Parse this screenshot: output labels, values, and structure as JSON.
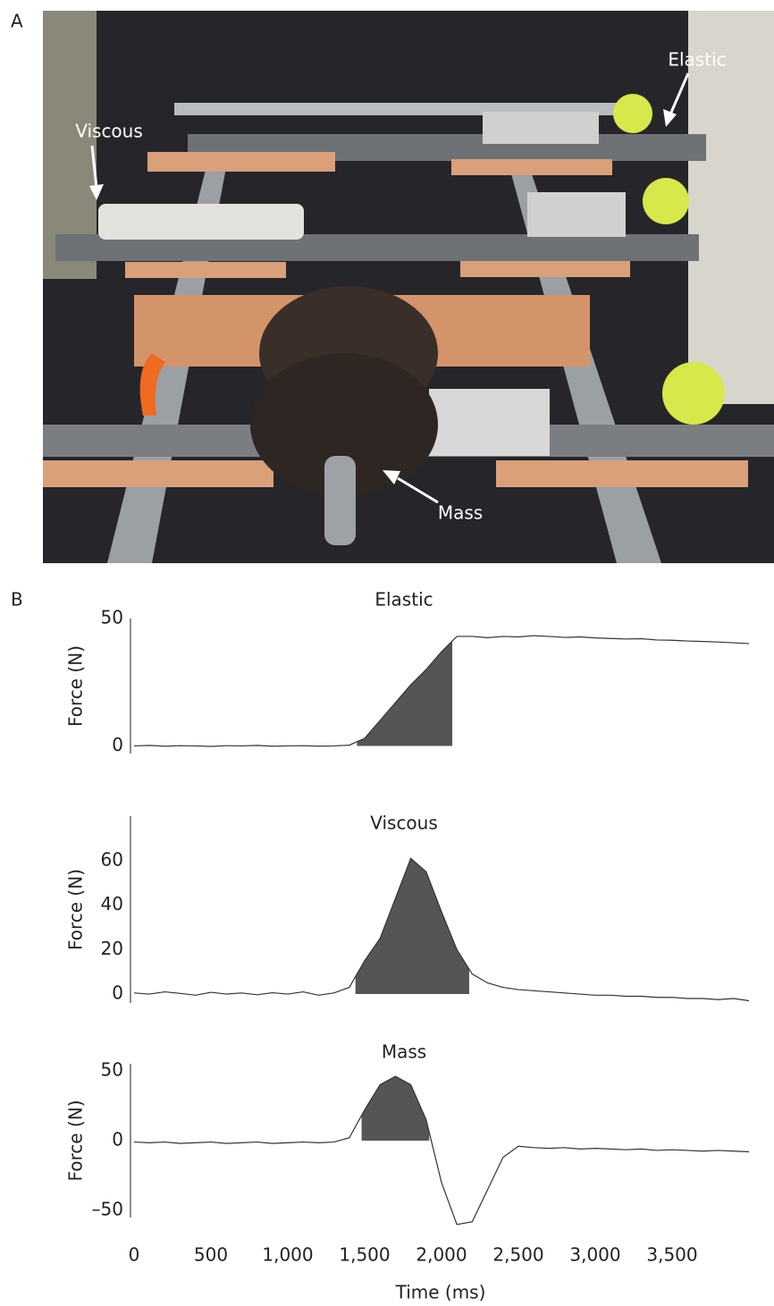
{
  "figure": {
    "panel_a": {
      "label": "A",
      "annotations": [
        "Viscous",
        "Elastic",
        "Mass"
      ]
    },
    "panel_b": {
      "label": "B"
    }
  },
  "chart_data": [
    {
      "type": "line",
      "title": "Elastic",
      "ylabel": "Force (N)",
      "color": "#333333",
      "shade_color": "#555555",
      "shade": [
        1450,
        2070
      ],
      "x": [
        0,
        100,
        200,
        300,
        400,
        500,
        600,
        700,
        800,
        900,
        1000,
        1100,
        1200,
        1300,
        1400,
        1500,
        1600,
        1700,
        1800,
        1900,
        2000,
        2100,
        2200,
        2300,
        2400,
        2500,
        2600,
        2700,
        2800,
        2900,
        3000,
        3100,
        3200,
        3300,
        3400,
        3500,
        3600,
        3700,
        3800,
        3900,
        4000
      ],
      "values": [
        0,
        0.2,
        -0.1,
        0.1,
        0,
        -0.2,
        0.1,
        0,
        0.2,
        -0.1,
        0,
        0.1,
        -0.1,
        0,
        0.3,
        3,
        10,
        17,
        24,
        30,
        37,
        43,
        43,
        42.5,
        43,
        42.8,
        43.3,
        43,
        42.6,
        42.8,
        42.4,
        42.2,
        42,
        42.1,
        41.6,
        41.5,
        41.2,
        41,
        40.8,
        40.5,
        40.2
      ],
      "xlim": [
        0,
        4000
      ],
      "ylim": [
        -3,
        50
      ],
      "yticks": [
        0,
        50
      ]
    },
    {
      "type": "line",
      "title": "Viscous",
      "ylabel": "Force (N)",
      "color": "#333333",
      "shade_color": "#555555",
      "shade": [
        1440,
        2180
      ],
      "x": [
        0,
        100,
        200,
        300,
        400,
        500,
        600,
        700,
        800,
        900,
        1000,
        1100,
        1200,
        1300,
        1400,
        1500,
        1600,
        1700,
        1800,
        1900,
        2000,
        2100,
        2200,
        2300,
        2400,
        2500,
        2600,
        2700,
        2800,
        2900,
        3000,
        3100,
        3200,
        3300,
        3400,
        3500,
        3600,
        3700,
        3800,
        3900,
        4000
      ],
      "values": [
        0.5,
        0,
        1,
        0.3,
        -0.5,
        0.8,
        0,
        0.5,
        -0.3,
        0.6,
        0,
        1,
        -0.5,
        0.5,
        3,
        15,
        25,
        43,
        61,
        55,
        37,
        20,
        9,
        5,
        3,
        2,
        1.5,
        1,
        0.5,
        0,
        -0.5,
        -0.5,
        -1,
        -1,
        -1.5,
        -1.5,
        -2,
        -2,
        -2.5,
        -2,
        -3
      ],
      "xlim": [
        0,
        4000
      ],
      "ylim": [
        -4,
        80
      ],
      "yticks": [
        0,
        20,
        40,
        60
      ]
    },
    {
      "type": "line",
      "title": "Mass",
      "ylabel": "Force (N)",
      "xlabel": "Time (ms)",
      "color": "#333333",
      "shade_color": "#555555",
      "shade": [
        1480,
        1920
      ],
      "x": [
        0,
        100,
        200,
        300,
        400,
        500,
        600,
        700,
        800,
        900,
        1000,
        1100,
        1200,
        1300,
        1400,
        1500,
        1600,
        1700,
        1800,
        1900,
        2000,
        2100,
        2200,
        2300,
        2400,
        2500,
        2600,
        2700,
        2800,
        2900,
        3000,
        3100,
        3200,
        3300,
        3400,
        3500,
        3600,
        3700,
        3800,
        3900,
        4000
      ],
      "values": [
        -1,
        -1.5,
        -1,
        -2,
        -1.5,
        -1,
        -2,
        -1.5,
        -1,
        -2,
        -1.5,
        -1,
        -1.5,
        -1,
        2,
        22,
        40,
        46,
        40,
        15,
        -30,
        -60,
        -58,
        -35,
        -12,
        -4,
        -5,
        -5.5,
        -5,
        -6,
        -5.5,
        -6,
        -6.5,
        -6,
        -7,
        -6.5,
        -7,
        -7.5,
        -7,
        -7.5,
        -8
      ],
      "xlim": [
        0,
        4000
      ],
      "ylim": [
        -55,
        55
      ],
      "yticks": [
        {
          "value": -50,
          "label": "–50"
        },
        0,
        50
      ],
      "xticks": [
        0,
        500,
        {
          "value": 1000,
          "label": "1,000"
        },
        {
          "value": 1500,
          "label": "1,500"
        },
        {
          "value": 2000,
          "label": "2,000"
        },
        {
          "value": 2500,
          "label": "2,500"
        },
        {
          "value": 3000,
          "label": "3,000"
        },
        {
          "value": 3500,
          "label": "3,500"
        }
      ]
    }
  ]
}
